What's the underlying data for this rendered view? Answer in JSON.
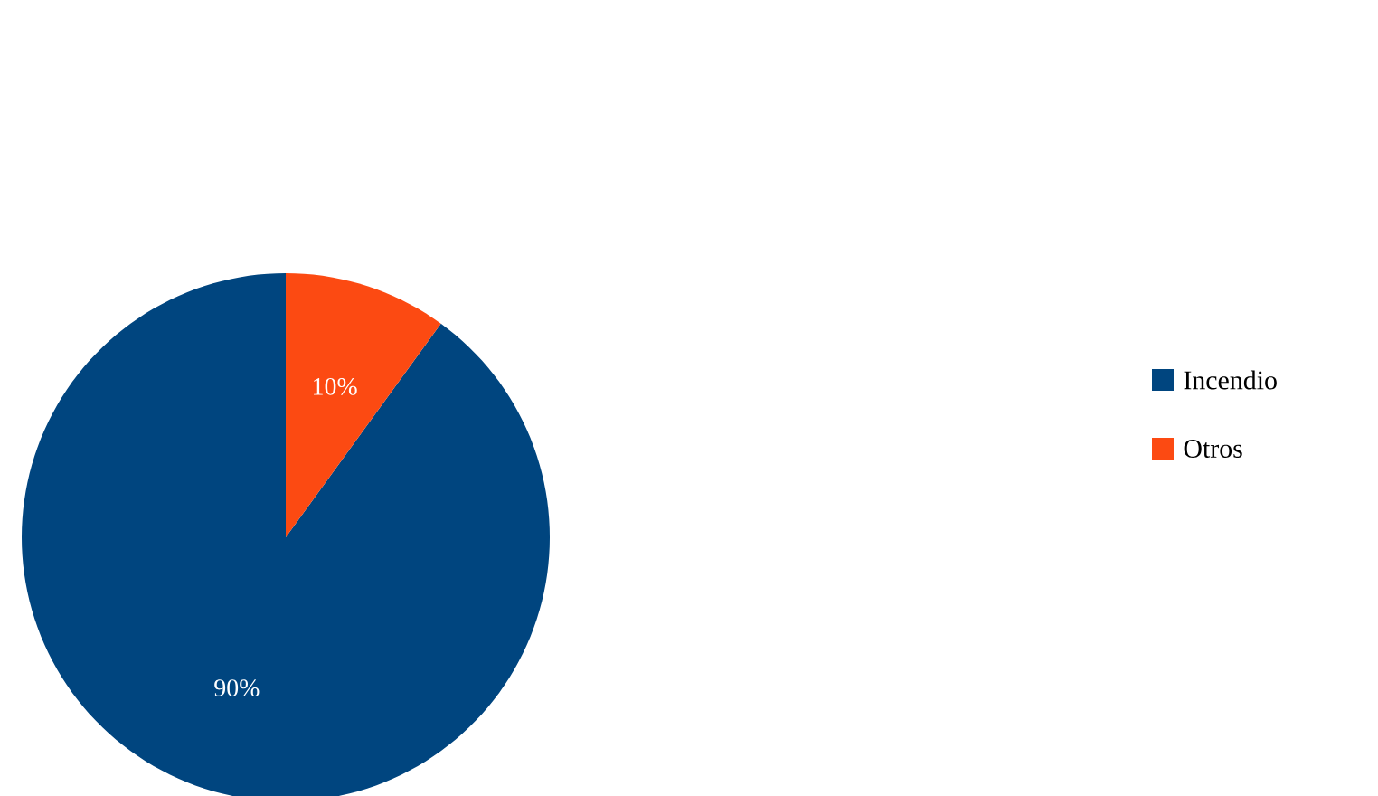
{
  "chart_data": {
    "type": "pie",
    "categories": [
      "Incendio",
      "Otros"
    ],
    "values": [
      90,
      10
    ],
    "colors": [
      "#00457f",
      "#fc4a12"
    ],
    "value_labels": [
      "90%",
      "10%"
    ],
    "legend": "right"
  }
}
